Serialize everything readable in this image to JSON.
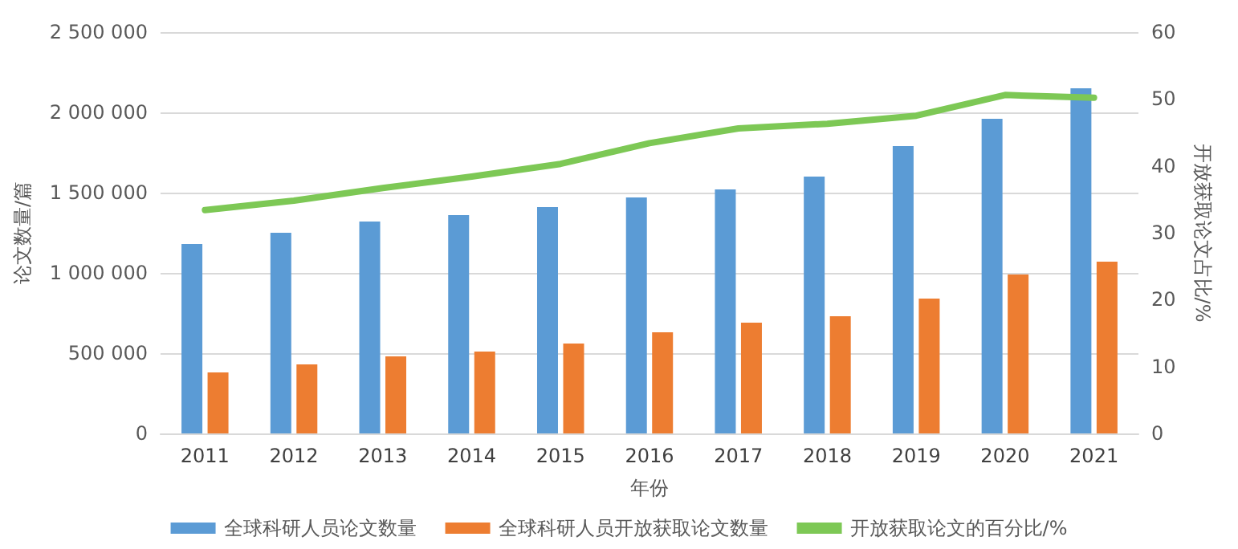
{
  "chart_data": {
    "type": "bar",
    "xlabel": "年份",
    "ylabel": "论文数量/篇",
    "y2label": "开放获取论文占比/%",
    "categories": [
      "2011",
      "2012",
      "2013",
      "2014",
      "2015",
      "2016",
      "2017",
      "2018",
      "2019",
      "2020",
      "2021"
    ],
    "series": [
      {
        "name": "全球科研人员论文数量",
        "color": "#5b9bd5",
        "values": [
          1180000,
          1250000,
          1320000,
          1360000,
          1410000,
          1470000,
          1520000,
          1600000,
          1790000,
          1960000,
          2150000
        ]
      },
      {
        "name": "全球科研人员开放获取论文数量",
        "color": "#ed7d31",
        "values": [
          380000,
          430000,
          480000,
          510000,
          560000,
          630000,
          690000,
          730000,
          840000,
          990000,
          1070000
        ]
      },
      {
        "name": "开放获取论文的百分比/%",
        "type": "line",
        "axis": "y2",
        "color": "#7dc855",
        "values": [
          33.4,
          34.8,
          36.7,
          38.4,
          40.3,
          43.4,
          45.6,
          46.3,
          47.5,
          50.6,
          50.2
        ]
      }
    ],
    "ylim": [
      0,
      2500000
    ],
    "yticks": [
      {
        "value": 0,
        "label": "0"
      },
      {
        "value": 500000,
        "label": "500 000"
      },
      {
        "value": 1000000,
        "label": "1 000 000"
      },
      {
        "value": 1500000,
        "label": "1 500 000"
      },
      {
        "value": 2000000,
        "label": "2 000 000"
      },
      {
        "value": 2500000,
        "label": "2 500 000"
      }
    ],
    "y2lim": [
      0,
      60
    ],
    "y2ticks": [
      0,
      10,
      20,
      30,
      40,
      50,
      60
    ],
    "grid": "y",
    "legend": "bottom",
    "marker": "none"
  }
}
